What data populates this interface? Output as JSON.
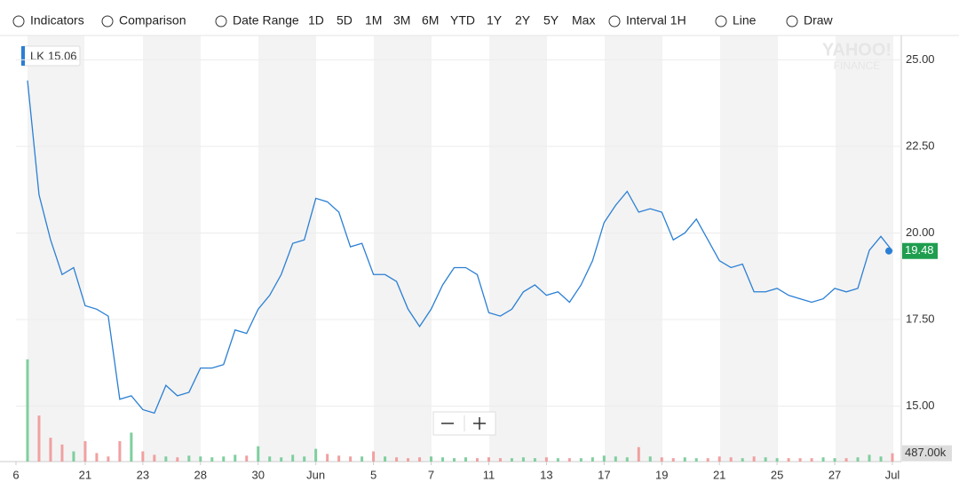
{
  "toolbar": {
    "items": [
      "Indicators",
      "Comparison",
      "Date Range",
      "1D",
      "5D",
      "1M",
      "3M",
      "6M",
      "YTD",
      "1Y",
      "2Y",
      "5Y",
      "Max",
      "Interval 1H",
      "Line",
      "Draw"
    ]
  },
  "watermark": [
    "YAHOO!",
    "FINANCE"
  ],
  "chart_data": {
    "type": "line",
    "categories": [
      "6",
      null,
      null,
      null,
      null,
      null,
      "21",
      null,
      null,
      null,
      null,
      "23",
      null,
      null,
      null,
      null,
      "28",
      null,
      null,
      null,
      null,
      "30",
      null,
      null,
      null,
      null,
      "Jun",
      null,
      null,
      null,
      null,
      "5",
      null,
      null,
      null,
      null,
      "7",
      null,
      null,
      null,
      null,
      "11",
      null,
      null,
      null,
      null,
      "13",
      null,
      null,
      null,
      null,
      "17",
      null,
      null,
      null,
      null,
      "19",
      null,
      null,
      null,
      null,
      "21",
      null,
      null,
      null,
      null,
      "25",
      null,
      null,
      null,
      null,
      "27",
      null,
      null,
      null,
      null,
      "Jul"
    ],
    "series": [
      {
        "name": "LK",
        "legend_value": 15.06,
        "color": "#2a7fd4",
        "values": [
          null,
          24.4,
          21.1,
          19.8,
          18.8,
          19.0,
          17.9,
          17.8,
          17.6,
          15.2,
          15.3,
          14.9,
          14.8,
          15.6,
          15.3,
          15.4,
          16.1,
          16.1,
          16.2,
          17.2,
          17.1,
          17.8,
          18.2,
          18.8,
          19.7,
          19.8,
          21.0,
          20.9,
          20.6,
          19.6,
          19.7,
          18.8,
          18.8,
          18.6,
          17.8,
          17.3,
          17.8,
          18.5,
          19.0,
          19.0,
          18.8,
          17.7,
          17.6,
          17.8,
          18.3,
          18.5,
          18.2,
          18.3,
          18.0,
          18.5,
          19.2,
          20.3,
          20.8,
          21.2,
          20.6,
          20.7,
          20.6,
          19.8,
          20.0,
          20.4,
          19.8,
          19.2,
          19.0,
          19.1,
          18.3,
          18.3,
          18.4,
          18.2,
          18.1,
          18.0,
          18.1,
          18.4,
          18.3,
          18.4,
          19.5,
          19.9,
          19.48
        ]
      },
      {
        "name": "Volume",
        "axis": "y2",
        "up_color": "#7fcf9f",
        "down_color": "#f0a0a0",
        "values": [
          null,
          6000,
          2700,
          1400,
          1000,
          600,
          1200,
          500,
          300,
          1200,
          1700,
          600,
          400,
          300,
          250,
          350,
          300,
          250,
          300,
          400,
          350,
          900,
          300,
          250,
          400,
          300,
          750,
          450,
          350,
          300,
          300,
          600,
          300,
          250,
          200,
          250,
          300,
          250,
          200,
          250,
          200,
          250,
          200,
          200,
          250,
          200,
          250,
          200,
          200,
          200,
          250,
          350,
          300,
          250,
          850,
          300,
          250,
          200,
          250,
          200,
          200,
          300,
          250,
          200,
          300,
          250,
          200,
          200,
          200,
          200,
          250,
          200,
          200,
          250,
          400,
          300,
          487
        ]
      }
    ],
    "ylim": [
      13.4,
      25.7
    ],
    "yticks": [
      {
        "value": 15,
        "label": "15.00"
      },
      {
        "value": 17.5,
        "label": "17.50"
      },
      {
        "value": 20,
        "label": "20.00"
      },
      {
        "value": 22.5,
        "label": "22.50"
      },
      {
        "value": 25,
        "label": "25.00"
      }
    ],
    "y2lim": [
      0,
      25000
    ],
    "y2ticks": [
      {
        "value": 487,
        "label": "487.00k"
      }
    ],
    "grid": true
  }
}
